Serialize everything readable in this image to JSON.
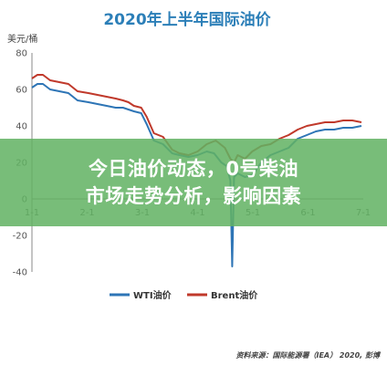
{
  "chart_data": {
    "type": "line",
    "title": "2020年上半年国际油价",
    "ylabel": "美元/桶",
    "ylim": [
      -40,
      80
    ],
    "yticks": [
      -40,
      -20,
      0,
      20,
      40,
      60,
      80
    ],
    "xticks": [
      "1-1",
      "2-1",
      "3-1",
      "4-1",
      "5-1",
      "6-1",
      "7-1"
    ],
    "grid": false,
    "legend_position": "bottom-center",
    "colors": {
      "WTI": "#2e75b6",
      "Brent": "#c0392b"
    },
    "series": [
      {
        "name": "WTI油价",
        "x": [
          0,
          3,
          6,
          10,
          15,
          20,
          25,
          31,
          36,
          41,
          46,
          50,
          53,
          56,
          60,
          63,
          67,
          72,
          77,
          81,
          86,
          91,
          96,
          100,
          104,
          107,
          109,
          110,
          111,
          113,
          117,
          121,
          126,
          131,
          136,
          141,
          146,
          151,
          156,
          161,
          166,
          171,
          176,
          181
        ],
        "y": [
          61,
          63,
          63,
          60,
          59,
          58,
          54,
          53,
          52,
          51,
          50,
          50,
          49,
          48,
          47,
          41,
          32,
          30,
          25,
          24,
          23,
          24,
          26,
          25,
          20,
          18,
          10,
          -37,
          12,
          14,
          12,
          13,
          20,
          24,
          26,
          28,
          33,
          35,
          37,
          38,
          38,
          39,
          39,
          40
        ]
      },
      {
        "name": "Brent油价",
        "x": [
          0,
          3,
          6,
          10,
          15,
          20,
          25,
          31,
          36,
          41,
          46,
          50,
          53,
          56,
          60,
          63,
          67,
          72,
          77,
          81,
          86,
          91,
          96,
          101,
          106,
          109,
          111,
          113,
          117,
          121,
          126,
          131,
          136,
          141,
          146,
          151,
          156,
          161,
          166,
          171,
          176,
          181
        ],
        "y": [
          66,
          68,
          68,
          65,
          64,
          63,
          59,
          58,
          57,
          56,
          55,
          54,
          53,
          51,
          50,
          45,
          36,
          34,
          27,
          25,
          24,
          26,
          30,
          32,
          28,
          22,
          20,
          24,
          22,
          26,
          29,
          30,
          33,
          35,
          38,
          40,
          41,
          42,
          42,
          43,
          43,
          42
        ]
      }
    ]
  },
  "source": "资料来源：国际能源署（IEA） 2020, 彭博",
  "banner": {
    "line1": "今日油价动态，0号柴油",
    "line2": "市场走势分析，影响因素"
  }
}
